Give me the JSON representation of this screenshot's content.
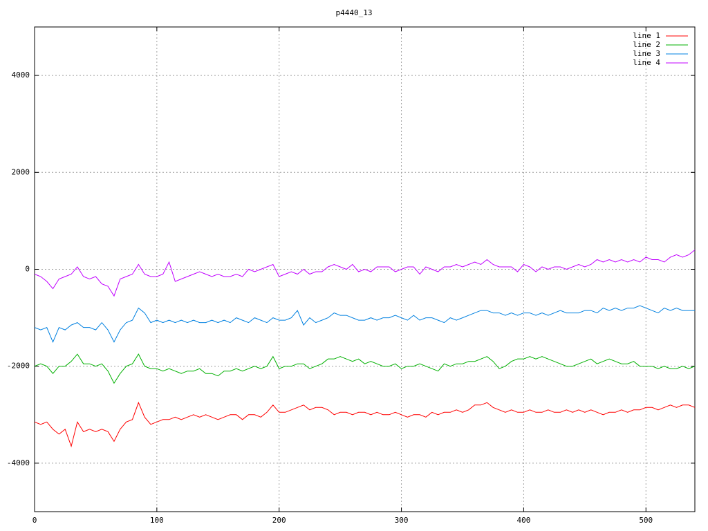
{
  "chart_data": {
    "type": "line",
    "title": "p4440_13",
    "xlim": [
      0,
      540
    ],
    "ylim": [
      -5000,
      5000
    ],
    "xticks": [
      0,
      100,
      200,
      300,
      400,
      500
    ],
    "yticks": [
      -4000,
      -2000,
      0,
      2000,
      4000
    ],
    "grid": true,
    "legend": "top-right",
    "x": [
      0,
      5,
      10,
      15,
      20,
      25,
      30,
      35,
      40,
      45,
      50,
      55,
      60,
      65,
      70,
      75,
      80,
      85,
      90,
      95,
      100,
      105,
      110,
      115,
      120,
      125,
      130,
      135,
      140,
      145,
      150,
      155,
      160,
      165,
      170,
      175,
      180,
      185,
      190,
      195,
      200,
      205,
      210,
      215,
      220,
      225,
      230,
      235,
      240,
      245,
      250,
      255,
      260,
      265,
      270,
      275,
      280,
      285,
      290,
      295,
      300,
      305,
      310,
      315,
      320,
      325,
      330,
      335,
      340,
      345,
      350,
      355,
      360,
      365,
      370,
      375,
      380,
      385,
      390,
      395,
      400,
      405,
      410,
      415,
      420,
      425,
      430,
      435,
      440,
      445,
      450,
      455,
      460,
      465,
      470,
      475,
      480,
      485,
      490,
      495,
      500,
      505,
      510,
      515,
      520,
      525,
      530,
      535,
      540
    ],
    "series": [
      {
        "name": "line 1",
        "color": "#ff0000",
        "values": [
          -3150,
          -3200,
          -3150,
          -3300,
          -3400,
          -3300,
          -3650,
          -3150,
          -3350,
          -3300,
          -3350,
          -3300,
          -3350,
          -3550,
          -3300,
          -3150,
          -3100,
          -2750,
          -3050,
          -3200,
          -3150,
          -3100,
          -3100,
          -3050,
          -3100,
          -3050,
          -3000,
          -3050,
          -3000,
          -3050,
          -3100,
          -3050,
          -3000,
          -3000,
          -3100,
          -3000,
          -3000,
          -3050,
          -2950,
          -2800,
          -2950,
          -2950,
          -2900,
          -2850,
          -2800,
          -2900,
          -2850,
          -2850,
          -2900,
          -3000,
          -2950,
          -2950,
          -3000,
          -2950,
          -2950,
          -3000,
          -2950,
          -3000,
          -3000,
          -2950,
          -3000,
          -3050,
          -3000,
          -3000,
          -3050,
          -2950,
          -3000,
          -2950,
          -2950,
          -2900,
          -2950,
          -2900,
          -2800,
          -2800,
          -2750,
          -2850,
          -2900,
          -2950,
          -2900,
          -2950,
          -2950,
          -2900,
          -2950,
          -2950,
          -2900,
          -2950,
          -2950,
          -2900,
          -2950,
          -2900,
          -2950,
          -2900,
          -2950,
          -3000,
          -2950,
          -2950,
          -2900,
          -2950,
          -2900,
          -2900,
          -2850,
          -2850,
          -2900,
          -2850,
          -2800,
          -2850,
          -2800,
          -2800,
          -2850
        ]
      },
      {
        "name": "line 2",
        "color": "#00b000",
        "values": [
          -2000,
          -1950,
          -2000,
          -2150,
          -2000,
          -2000,
          -1900,
          -1750,
          -1950,
          -1950,
          -2000,
          -1950,
          -2100,
          -2350,
          -2150,
          -2000,
          -1950,
          -1750,
          -2000,
          -2050,
          -2050,
          -2100,
          -2050,
          -2100,
          -2150,
          -2100,
          -2100,
          -2050,
          -2150,
          -2150,
          -2200,
          -2100,
          -2100,
          -2050,
          -2100,
          -2050,
          -2000,
          -2050,
          -2000,
          -1800,
          -2050,
          -2000,
          -2000,
          -1950,
          -1950,
          -2050,
          -2000,
          -1950,
          -1850,
          -1850,
          -1800,
          -1850,
          -1900,
          -1850,
          -1950,
          -1900,
          -1950,
          -2000,
          -2000,
          -1950,
          -2050,
          -2000,
          -2000,
          -1950,
          -2000,
          -2050,
          -2100,
          -1950,
          -2000,
          -1950,
          -1950,
          -1900,
          -1900,
          -1850,
          -1800,
          -1900,
          -2050,
          -2000,
          -1900,
          -1850,
          -1850,
          -1800,
          -1850,
          -1800,
          -1850,
          -1900,
          -1950,
          -2000,
          -2000,
          -1950,
          -1900,
          -1850,
          -1950,
          -1900,
          -1850,
          -1900,
          -1950,
          -1950,
          -1900,
          -2000,
          -2000,
          -2000,
          -2050,
          -2000,
          -2050,
          -2050,
          -2000,
          -2050,
          -2000
        ]
      },
      {
        "name": "line 3",
        "color": "#0080e0",
        "values": [
          -1200,
          -1250,
          -1200,
          -1500,
          -1200,
          -1250,
          -1150,
          -1100,
          -1200,
          -1200,
          -1250,
          -1100,
          -1250,
          -1500,
          -1250,
          -1100,
          -1050,
          -800,
          -900,
          -1100,
          -1050,
          -1100,
          -1050,
          -1100,
          -1050,
          -1100,
          -1050,
          -1100,
          -1100,
          -1050,
          -1100,
          -1050,
          -1100,
          -1000,
          -1050,
          -1100,
          -1000,
          -1050,
          -1100,
          -1000,
          -1050,
          -1050,
          -1000,
          -850,
          -1150,
          -1000,
          -1100,
          -1050,
          -1000,
          -900,
          -950,
          -950,
          -1000,
          -1050,
          -1050,
          -1000,
          -1050,
          -1000,
          -1000,
          -950,
          -1000,
          -1050,
          -950,
          -1050,
          -1000,
          -1000,
          -1050,
          -1100,
          -1000,
          -1050,
          -1000,
          -950,
          -900,
          -850,
          -850,
          -900,
          -900,
          -950,
          -900,
          -950,
          -900,
          -900,
          -950,
          -900,
          -950,
          -900,
          -850,
          -900,
          -900,
          -900,
          -850,
          -850,
          -900,
          -800,
          -850,
          -800,
          -850,
          -800,
          -800,
          -750,
          -800,
          -850,
          -900,
          -800,
          -850,
          -800,
          -850,
          -850,
          -850
        ]
      },
      {
        "name": "line 4",
        "color": "#c000ff",
        "values": [
          -100,
          -150,
          -250,
          -400,
          -200,
          -150,
          -100,
          50,
          -150,
          -200,
          -150,
          -300,
          -350,
          -550,
          -200,
          -150,
          -100,
          100,
          -100,
          -150,
          -150,
          -100,
          150,
          -250,
          -200,
          -150,
          -100,
          -50,
          -100,
          -150,
          -100,
          -150,
          -150,
          -100,
          -150,
          0,
          -50,
          0,
          50,
          100,
          -150,
          -100,
          -50,
          -100,
          0,
          -100,
          -50,
          -50,
          50,
          100,
          50,
          0,
          100,
          -50,
          0,
          -50,
          50,
          50,
          50,
          -50,
          0,
          50,
          50,
          -100,
          50,
          0,
          -50,
          50,
          50,
          100,
          50,
          100,
          150,
          100,
          200,
          100,
          50,
          50,
          50,
          -50,
          100,
          50,
          -50,
          50,
          0,
          50,
          50,
          0,
          50,
          100,
          50,
          100,
          200,
          150,
          200,
          150,
          200,
          150,
          200,
          150,
          250,
          200,
          200,
          150,
          250,
          300,
          250,
          300,
          400
        ]
      }
    ]
  }
}
